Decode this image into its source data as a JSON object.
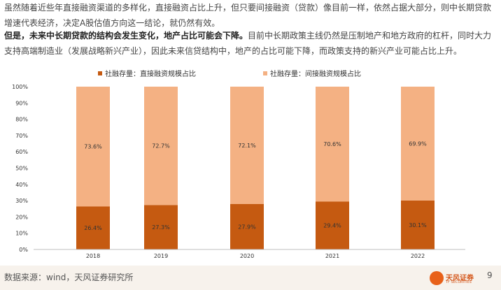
{
  "paragraph1": "虽然随着近些年直接融资渠道的多样化，直接融资占比上升，但只要间接融资（贷款）像目前一样，依然占据大部分，则中长期贷款增速代表经济，决定A股估值方向这一结论，就仍然有效。",
  "paragraph2_bold": "但是，未来中长期贷款的结构会发生变化，地产占比可能会下降。",
  "paragraph2_rest": "目前中长期政策主线仍然是压制地产和地方政府的杠杆，同时大力支持高端制造业（发展战略新兴产业），因此未来信贷结构中，地产的占比可能下降，而政策支持的新兴产业可能占比上升。",
  "chart_data": {
    "type": "bar",
    "stacked": true,
    "categories": [
      "2018",
      "2019",
      "2020",
      "2021",
      "2022"
    ],
    "series": [
      {
        "name": "社融存量：直接融资规模占比",
        "color": "#c55a11",
        "values": [
          26.4,
          27.3,
          27.9,
          29.4,
          30.1
        ],
        "labels": [
          "26.4%",
          "27.3%",
          "27.9%",
          "29.4%",
          "30.1%"
        ]
      },
      {
        "name": "社融存量：间接融资规模占比",
        "color": "#f4b183",
        "values": [
          73.6,
          72.7,
          72.1,
          70.6,
          69.9
        ],
        "labels": [
          "73.6%",
          "72.7%",
          "72.1%",
          "70.6%",
          "69.9%"
        ]
      }
    ],
    "yticks": [
      "0%",
      "10%",
      "20%",
      "30%",
      "40%",
      "50%",
      "60%",
      "70%",
      "80%",
      "90%",
      "100%"
    ],
    "ylim": [
      0,
      100
    ],
    "legend_position": "top",
    "grid": false
  },
  "footer": {
    "source": "数据来源：wind，天风证券研究所",
    "logo_text": "天风证券",
    "logo_sub": "TF SECURITIES",
    "page_number": "9"
  }
}
